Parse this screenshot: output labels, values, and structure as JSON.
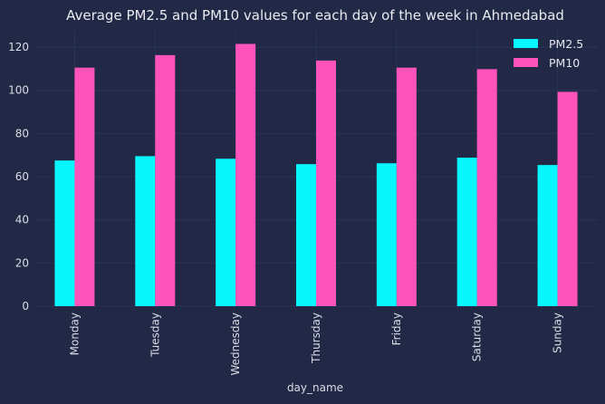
{
  "chart_data": {
    "type": "bar",
    "title": "Average PM2.5 and PM10 values for each day of the week in Ahmedabad",
    "xlabel": "day_name",
    "ylabel": "",
    "categories": [
      "Monday",
      "Tuesday",
      "Wednesday",
      "Thursday",
      "Friday",
      "Saturday",
      "Sunday"
    ],
    "series": [
      {
        "name": "PM2.5",
        "color": "#08F7FE",
        "values": [
          67.5,
          69.5,
          68.3,
          65.8,
          66.2,
          68.8,
          65.4
        ]
      },
      {
        "name": "PM10",
        "color": "#FE53BB",
        "values": [
          110.5,
          116.3,
          121.5,
          113.8,
          110.5,
          109.8,
          99.3
        ]
      }
    ],
    "ylim": [
      0,
      128
    ],
    "yticks": [
      0,
      20,
      40,
      60,
      80,
      100,
      120
    ],
    "grid": true,
    "legend_position": "top-right",
    "background_color": "#212946",
    "grid_color": "#2A3459"
  }
}
